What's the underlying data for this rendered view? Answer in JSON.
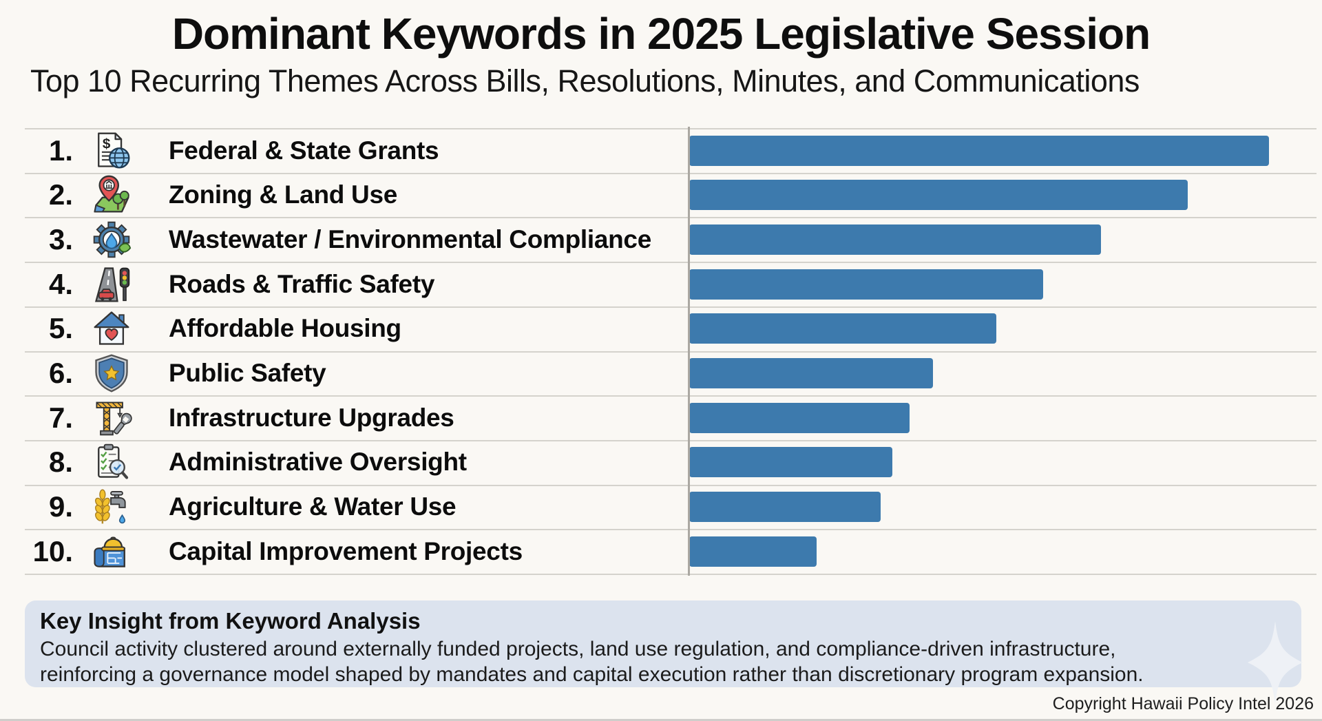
{
  "header": {
    "title": "Dominant Keywords in 2025 Legislative Session",
    "subtitle": "Top 10 Recurring Themes Across Bills, Resolutions, Minutes, and Communications"
  },
  "chart_data": {
    "type": "bar",
    "orientation": "horizontal",
    "title": "Dominant Keywords in 2025 Legislative Session",
    "subtitle": "Top 10 Recurring Themes Across Bills, Resolutions, Minutes, and Communications",
    "categories": [
      "Federal & State Grants",
      "Zoning & Land Use",
      "Wastewater / Environmental Compliance",
      "Roads & Traffic Safety",
      "Affordable Housing",
      "Public Safety",
      "Infrastructure Upgrades",
      "Administrative Oversight",
      "Agriculture & Water Use",
      "Capital Improvement Projects"
    ],
    "values": [
      100,
      86,
      71,
      61,
      53,
      42,
      38,
      35,
      33,
      22
    ],
    "value_note": "bars are unlabeled; values estimated as percent of longest bar",
    "xlim": [
      0,
      109
    ],
    "grid": "horizontal row separator lines",
    "legend": "none",
    "bar_color": "#3d7aad",
    "items": [
      {
        "rank": "1.",
        "label": "Federal & State Grants",
        "icon": "grants-document-globe-icon",
        "value": 100
      },
      {
        "rank": "2.",
        "label": "Zoning & Land Use",
        "icon": "zoning-map-pin-icon",
        "value": 86
      },
      {
        "rank": "3.",
        "label": "Wastewater / Environmental Compliance",
        "icon": "wastewater-gear-drop-icon",
        "value": 71
      },
      {
        "rank": "4.",
        "label": "Roads & Traffic Safety",
        "icon": "road-traffic-light-icon",
        "value": 61
      },
      {
        "rank": "5.",
        "label": "Affordable Housing",
        "icon": "house-heart-icon",
        "value": 53
      },
      {
        "rank": "6.",
        "label": "Public Safety",
        "icon": "shield-star-icon",
        "value": 42
      },
      {
        "rank": "7.",
        "label": "Infrastructure Upgrades",
        "icon": "crane-wrench-icon",
        "value": 38
      },
      {
        "rank": "8.",
        "label": "Administrative Oversight",
        "icon": "clipboard-magnifier-icon",
        "value": 35
      },
      {
        "rank": "9.",
        "label": "Agriculture & Water Use",
        "icon": "wheat-faucet-icon",
        "value": 33
      },
      {
        "rank": "10.",
        "label": "Capital Improvement Projects",
        "icon": "blueprint-hardhat-icon",
        "value": 22
      }
    ]
  },
  "insight": {
    "heading": "Key Insight from Keyword Analysis",
    "body_line1": "Council activity clustered around externally funded projects, land use regulation, and compliance-driven infrastructure,",
    "body_line2": "reinforcing a governance model shaped by mandates and capital execution rather than discretionary program expansion."
  },
  "footer": {
    "copyright": "Copyright Hawaii Policy Intel 2026"
  },
  "colors": {
    "background": "#faf8f4",
    "bar": "#3d7aad",
    "grid_line": "#d4d2cc",
    "axis_line": "#aba8a2",
    "insight_background": "#dce3ee"
  }
}
